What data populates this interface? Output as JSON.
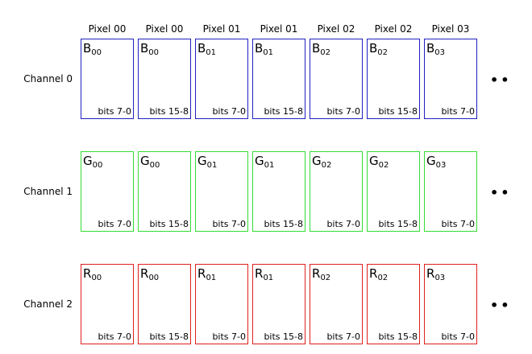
{
  "columns": [
    {
      "header": "Pixel 00",
      "index": "00",
      "bits": "bits 7-0"
    },
    {
      "header": "Pixel 00",
      "index": "00",
      "bits": "bits 15-8"
    },
    {
      "header": "Pixel 01",
      "index": "01",
      "bits": "bits 7-0"
    },
    {
      "header": "Pixel 01",
      "index": "01",
      "bits": "bits 15-8"
    },
    {
      "header": "Pixel 02",
      "index": "02",
      "bits": "bits 7-0"
    },
    {
      "header": "Pixel 02",
      "index": "02",
      "bits": "bits 15-8"
    },
    {
      "header": "Pixel 03",
      "index": "03",
      "bits": "bits 7-0"
    }
  ],
  "channels": [
    {
      "label": "Channel 0",
      "letter": "B",
      "color": "#2020c0",
      "name": "blue"
    },
    {
      "label": "Channel 1",
      "letter": "G",
      "color": "#33dd33",
      "name": "green"
    },
    {
      "label": "Channel 2",
      "letter": "R",
      "color": "#e02020",
      "name": "red"
    }
  ],
  "ellipsis": "••"
}
